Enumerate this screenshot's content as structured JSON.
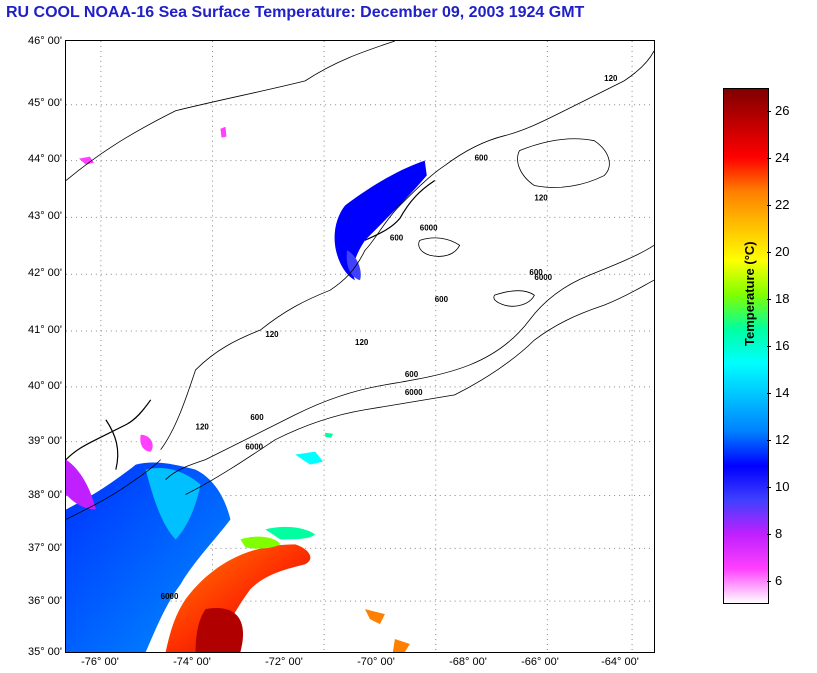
{
  "title": "RU COOL  NOAA-16  Sea Surface Temperature:  December 09, 2003 1924 GMT",
  "latitude_labels": [
    "46° 00'",
    "45° 00'",
    "44° 00'",
    "43° 00'",
    "42° 00'",
    "41° 00'",
    "40° 00'",
    "39° 00'",
    "38° 00'",
    "37° 00'",
    "36° 00'",
    "35° 00'"
  ],
  "longitude_labels": [
    "-76° 00'",
    "-74° 00'",
    "-72° 00'",
    "-70° 00'",
    "-68° 00'",
    "-66° 00'",
    "-64° 00'"
  ],
  "colorbar": {
    "label": "Temperature (°C)",
    "ticks": [
      "26",
      "24",
      "22",
      "20",
      "18",
      "16",
      "14",
      "12",
      "10",
      "8",
      "6"
    ],
    "range": [
      5,
      27
    ],
    "colors": [
      "#ffffff",
      "#ff40ff",
      "#c020ff",
      "#4040ff",
      "#0000ff",
      "#0080ff",
      "#00c0ff",
      "#00ffff",
      "#00ffa0",
      "#80ff00",
      "#ffff00",
      "#ffc000",
      "#ff8000",
      "#ff0000",
      "#c00000",
      "#800000"
    ]
  },
  "bathymetry_labels": [
    "120",
    "600",
    "6000",
    "600",
    "6000",
    "120",
    "600",
    "6000",
    "120",
    "600",
    "600",
    "120",
    "600",
    "6000",
    "120",
    "6000"
  ]
}
